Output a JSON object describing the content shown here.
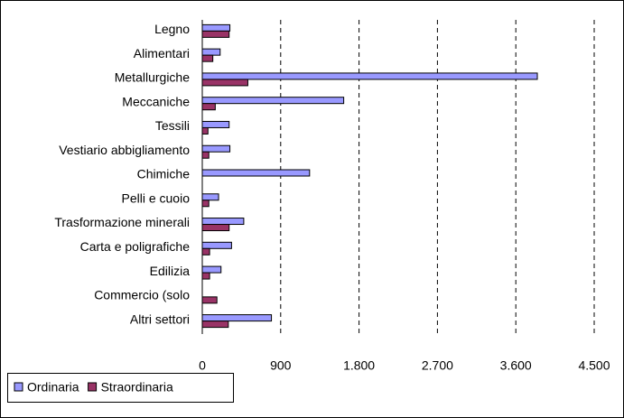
{
  "chart_data": {
    "type": "hbar",
    "categories": [
      "Legno",
      "Alimentari",
      "Metallurgiche",
      "Meccaniche",
      "Tessili",
      "Vestiario abbigliamento",
      "Chimiche",
      "Pelli e cuoio",
      "Trasformazione minerali",
      "Carta e poligrafiche",
      "Edilizia",
      "Commercio (solo",
      "Altri settori"
    ],
    "series": [
      {
        "name": "Ordinaria",
        "color": "#9999ff",
        "values": [
          317,
          205,
          3847,
          1624,
          308,
          317,
          1232,
          187,
          476,
          336,
          215,
          0,
          794
        ]
      },
      {
        "name": "Straordinaria",
        "color": "#993366",
        "values": [
          308,
          121,
          523,
          149,
          65,
          75,
          0,
          75,
          308,
          84,
          84,
          168,
          299
        ]
      }
    ],
    "xlim": [
      0,
      4500
    ],
    "xticks": [
      0,
      900,
      {
        "value": 1800,
        "label": "1.800"
      },
      {
        "value": 2700,
        "label": "2.700"
      },
      {
        "value": 3600,
        "label": "3.600"
      },
      {
        "value": 4500,
        "label": "4.500"
      }
    ],
    "grid": true,
    "legend": "bottom-left"
  }
}
